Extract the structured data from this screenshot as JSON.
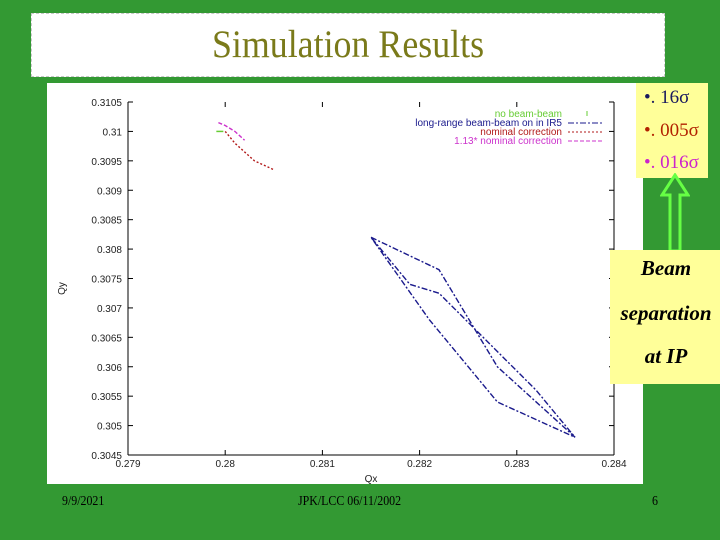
{
  "slide": {
    "title": "Simulation Results",
    "background_color": "#339933",
    "title_color": "#7a7a1a"
  },
  "sigma_box": {
    "items": [
      {
        "label": "•. 16σ",
        "color": "#1a1a5e"
      },
      {
        "label": "•. 005σ",
        "color": "#b22200"
      },
      {
        "label": "•. 016σ",
        "color": "#cc22cc"
      }
    ]
  },
  "annotation": {
    "lines": [
      "Beam",
      "separation",
      "at IP"
    ],
    "arrow_color": "#66ff44"
  },
  "footer": {
    "date": "9/9/2021",
    "center": "JPK/LCC 06/11/2002",
    "page": "6"
  },
  "chart_data": {
    "type": "scatter",
    "title": "",
    "xlabel": "Qx",
    "ylabel": "Qy",
    "xlim": [
      0.279,
      0.284
    ],
    "ylim": [
      0.3045,
      0.3105
    ],
    "x_ticks": [
      "0.279",
      "0.28",
      "0.281",
      "0.282",
      "0.283",
      "0.284"
    ],
    "y_ticks": [
      "0.3105",
      "0.31",
      "0.3095",
      "0.309",
      "0.3085",
      "0.308",
      "0.3075",
      "0.307",
      "0.3065",
      "0.306",
      "0.3055",
      "0.305",
      "0.3045"
    ],
    "grid": false,
    "legend_position": "top-right",
    "series": [
      {
        "name": "no beam-beam",
        "color": "#66cc33",
        "style": "points",
        "points": [
          [
            0.27995,
            0.31
          ]
        ]
      },
      {
        "name": "long-range beam-beam on in IR5",
        "color": "#1a1a8c",
        "style": "dash-dot",
        "points": [
          [
            0.2815,
            0.3082
          ],
          [
            0.2822,
            0.30765
          ],
          [
            0.2828,
            0.306
          ],
          [
            0.2836,
            0.3048
          ],
          [
            0.2828,
            0.3054
          ],
          [
            0.2821,
            0.3068
          ],
          [
            0.2815,
            0.3082
          ],
          [
            0.2819,
            0.3074
          ],
          [
            0.2822,
            0.30725
          ],
          [
            0.2832,
            0.3056
          ],
          [
            0.2836,
            0.3048
          ]
        ]
      },
      {
        "name": "nominal correction",
        "color": "#b21a1a",
        "style": "dotted",
        "points": [
          [
            0.28,
            0.31
          ],
          [
            0.2801,
            0.3098
          ],
          [
            0.2803,
            0.3095
          ],
          [
            0.2805,
            0.30935
          ]
        ]
      },
      {
        "name": "1.13* nominal correction",
        "color": "#cc33cc",
        "style": "dashed",
        "points": [
          [
            0.27993,
            0.31015
          ],
          [
            0.28,
            0.3101
          ],
          [
            0.2801,
            0.31
          ],
          [
            0.2802,
            0.30985
          ]
        ]
      }
    ]
  }
}
